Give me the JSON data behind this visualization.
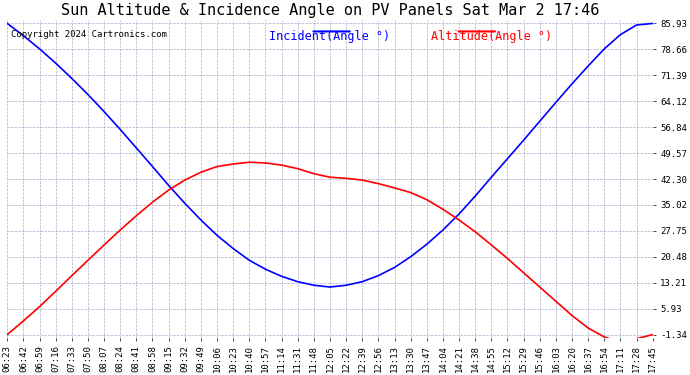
{
  "title": "Sun Altitude & Incidence Angle on PV Panels Sat Mar 2 17:46",
  "copyright": "Copyright 2024 Cartronics.com",
  "legend_incident": "Incident(Angle °)",
  "legend_altitude": "Altitude(Angle °)",
  "incident_color": "blue",
  "altitude_color": "red",
  "bg_color": "#ffffff",
  "grid_color": "#aaaacc",
  "ymin": -1.34,
  "ymax": 85.93,
  "yticks": [
    85.93,
    78.66,
    71.39,
    64.12,
    56.84,
    49.57,
    42.3,
    35.02,
    27.75,
    20.48,
    13.21,
    5.93,
    -1.34
  ],
  "xtick_labels": [
    "06:23",
    "06:42",
    "06:59",
    "07:16",
    "07:33",
    "07:50",
    "08:07",
    "08:24",
    "08:41",
    "08:58",
    "09:15",
    "09:32",
    "09:49",
    "10:06",
    "10:23",
    "10:40",
    "10:57",
    "11:14",
    "11:31",
    "11:48",
    "12:05",
    "12:22",
    "12:39",
    "12:56",
    "13:13",
    "13:30",
    "13:47",
    "14:04",
    "14:21",
    "14:38",
    "14:55",
    "15:12",
    "15:29",
    "15:46",
    "16:03",
    "16:20",
    "16:37",
    "16:54",
    "17:11",
    "17:28",
    "17:45"
  ],
  "n_points": 41,
  "incident_values": [
    85.93,
    82.5,
    78.8,
    74.8,
    70.5,
    66.0,
    61.2,
    56.2,
    51.0,
    45.8,
    40.5,
    35.5,
    30.8,
    26.5,
    22.8,
    19.5,
    17.0,
    15.0,
    13.5,
    12.5,
    12.0,
    12.5,
    13.5,
    15.2,
    17.5,
    20.5,
    24.0,
    28.0,
    32.5,
    37.5,
    42.8,
    48.0,
    53.2,
    58.5,
    63.8,
    69.0,
    74.0,
    78.8,
    82.8,
    85.5,
    85.93
  ],
  "altitude_values": [
    -1.34,
    2.5,
    6.5,
    10.8,
    15.2,
    19.5,
    23.8,
    28.0,
    32.0,
    35.8,
    39.2,
    42.0,
    44.2,
    45.8,
    46.5,
    47.0,
    46.8,
    46.2,
    45.2,
    43.8,
    42.8,
    42.5,
    42.0,
    41.0,
    39.8,
    38.5,
    36.5,
    33.8,
    30.8,
    27.5,
    23.8,
    20.0,
    16.0,
    12.0,
    8.0,
    4.0,
    0.5,
    -2.0,
    -3.5,
    -2.5,
    -1.34
  ],
  "title_fontsize": 11,
  "tick_fontsize": 6.5,
  "legend_fontsize": 8.5,
  "copyright_fontsize": 6.5
}
